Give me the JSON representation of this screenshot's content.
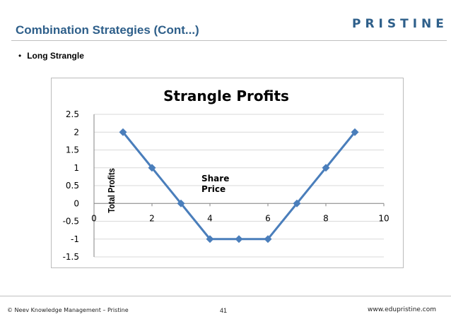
{
  "slide": {
    "title": "Combination Strategies (Cont...)",
    "logo": "PRISTINE",
    "bullet": "Long Strangle"
  },
  "footer": {
    "copyright": "© Neev Knowledge Management – Pristine",
    "page_number": "41",
    "website": "www.edupristine.com"
  },
  "colors": {
    "series": "#4a7ebb",
    "title_accent": "#2e5f8a"
  },
  "chart_data": {
    "type": "line",
    "title": "Strangle Profits",
    "xlabel": "Share Price",
    "ylabel": "Total Profits",
    "xlim": [
      0,
      10
    ],
    "ylim": [
      -1.5,
      2.5
    ],
    "xticks": [
      "0",
      "2",
      "4",
      "6",
      "8",
      "10"
    ],
    "yticks": [
      "-1.5",
      "-1",
      "-0.5",
      "0",
      "0.5",
      "1",
      "1.5",
      "2",
      "2.5"
    ],
    "grid": true,
    "series": [
      {
        "name": "Strangle Profits",
        "x": [
          1,
          2,
          3,
          4,
          5,
          6,
          7,
          8,
          9
        ],
        "y": [
          2,
          1,
          0,
          -1,
          -1,
          -1,
          0,
          1,
          2
        ]
      }
    ]
  }
}
